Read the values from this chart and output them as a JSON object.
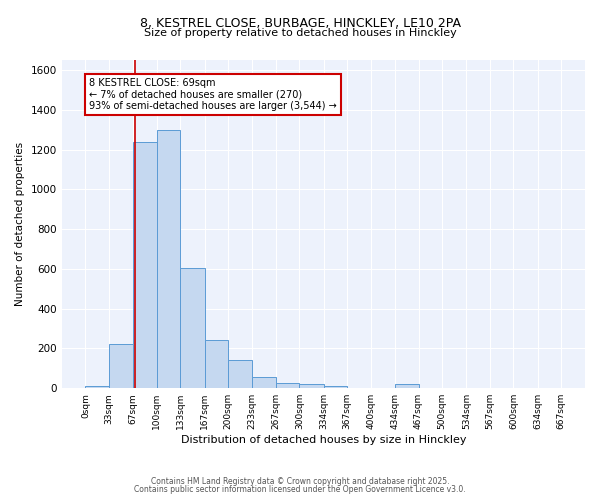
{
  "title_line1": "8, KESTREL CLOSE, BURBAGE, HINCKLEY, LE10 2PA",
  "title_line2": "Size of property relative to detached houses in Hinckley",
  "xlabel": "Distribution of detached houses by size in Hinckley",
  "ylabel": "Number of detached properties",
  "bin_edges": [
    0,
    33,
    67,
    100,
    133,
    167,
    200,
    233,
    267,
    300,
    334,
    367,
    400,
    434,
    467,
    500,
    534,
    567,
    600,
    634,
    667
  ],
  "bar_heights": [
    10,
    220,
    1240,
    1300,
    605,
    240,
    140,
    55,
    25,
    20,
    10,
    0,
    0,
    20,
    0,
    0,
    0,
    0,
    0,
    0
  ],
  "bar_color": "#c5d8f0",
  "bar_edge_color": "#5b9bd5",
  "property_size": 69,
  "red_line_color": "#cc0000",
  "annotation_text": "8 KESTREL CLOSE: 69sqm\n← 7% of detached houses are smaller (270)\n93% of semi-detached houses are larger (3,544) →",
  "annotation_box_color": "#ffffff",
  "annotation_box_edge": "#cc0000",
  "ylim": [
    0,
    1650
  ],
  "yticks": [
    0,
    200,
    400,
    600,
    800,
    1000,
    1200,
    1400,
    1600
  ],
  "tick_labels": [
    "0sqm",
    "33sqm",
    "67sqm",
    "100sqm",
    "133sqm",
    "167sqm",
    "200sqm",
    "233sqm",
    "267sqm",
    "300sqm",
    "334sqm",
    "367sqm",
    "400sqm",
    "434sqm",
    "467sqm",
    "500sqm",
    "534sqm",
    "567sqm",
    "600sqm",
    "634sqm",
    "667sqm"
  ],
  "footer_line1": "Contains HM Land Registry data © Crown copyright and database right 2025.",
  "footer_line2": "Contains public sector information licensed under the Open Government Licence v3.0.",
  "bg_color": "#edf2fc",
  "grid_color": "#ffffff",
  "fig_bg": "#ffffff"
}
